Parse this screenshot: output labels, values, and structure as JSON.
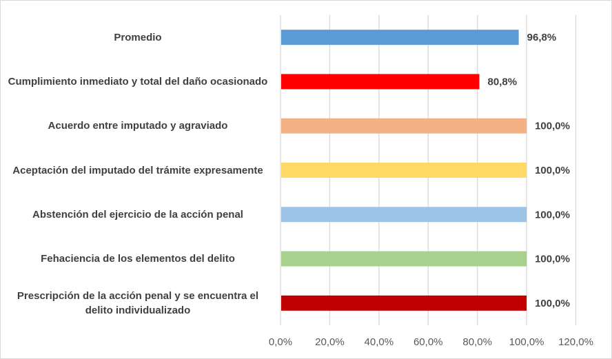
{
  "chart_data": {
    "type": "bar",
    "orientation": "horizontal",
    "categories": [
      "Promedio",
      "Cumplimiento inmediato y total del daño ocasionado",
      "Acuerdo entre imputado y agraviado",
      "Aceptación del imputado del trámite expresamente",
      "Abstención del ejercicio de la acción penal",
      "Fehaciencia de los elementos del delito",
      "Prescripción de la acción penal y se encuentra el delito individualizado"
    ],
    "values": [
      96.8,
      80.8,
      100.0,
      100.0,
      100.0,
      100.0,
      100.0
    ],
    "data_labels": [
      "96,8%",
      "80,8%",
      "100,0%",
      "100,0%",
      "100,0%",
      "100,0%",
      "100,0%"
    ],
    "colors": [
      "#5B9BD5",
      "#FF0000",
      "#F4B183",
      "#FFD966",
      "#9DC3E6",
      "#A9D18E",
      "#C00000"
    ],
    "xlim": [
      0,
      120
    ],
    "x_ticks": [
      0,
      20,
      40,
      60,
      80,
      100,
      120
    ],
    "x_tick_labels": [
      "0,0%",
      "20,0%",
      "40,0%",
      "60,0%",
      "80,0%",
      "100,0%",
      "120,0%"
    ],
    "grid": "vertical",
    "legend": "none",
    "title": "",
    "xlabel": "",
    "ylabel": ""
  }
}
